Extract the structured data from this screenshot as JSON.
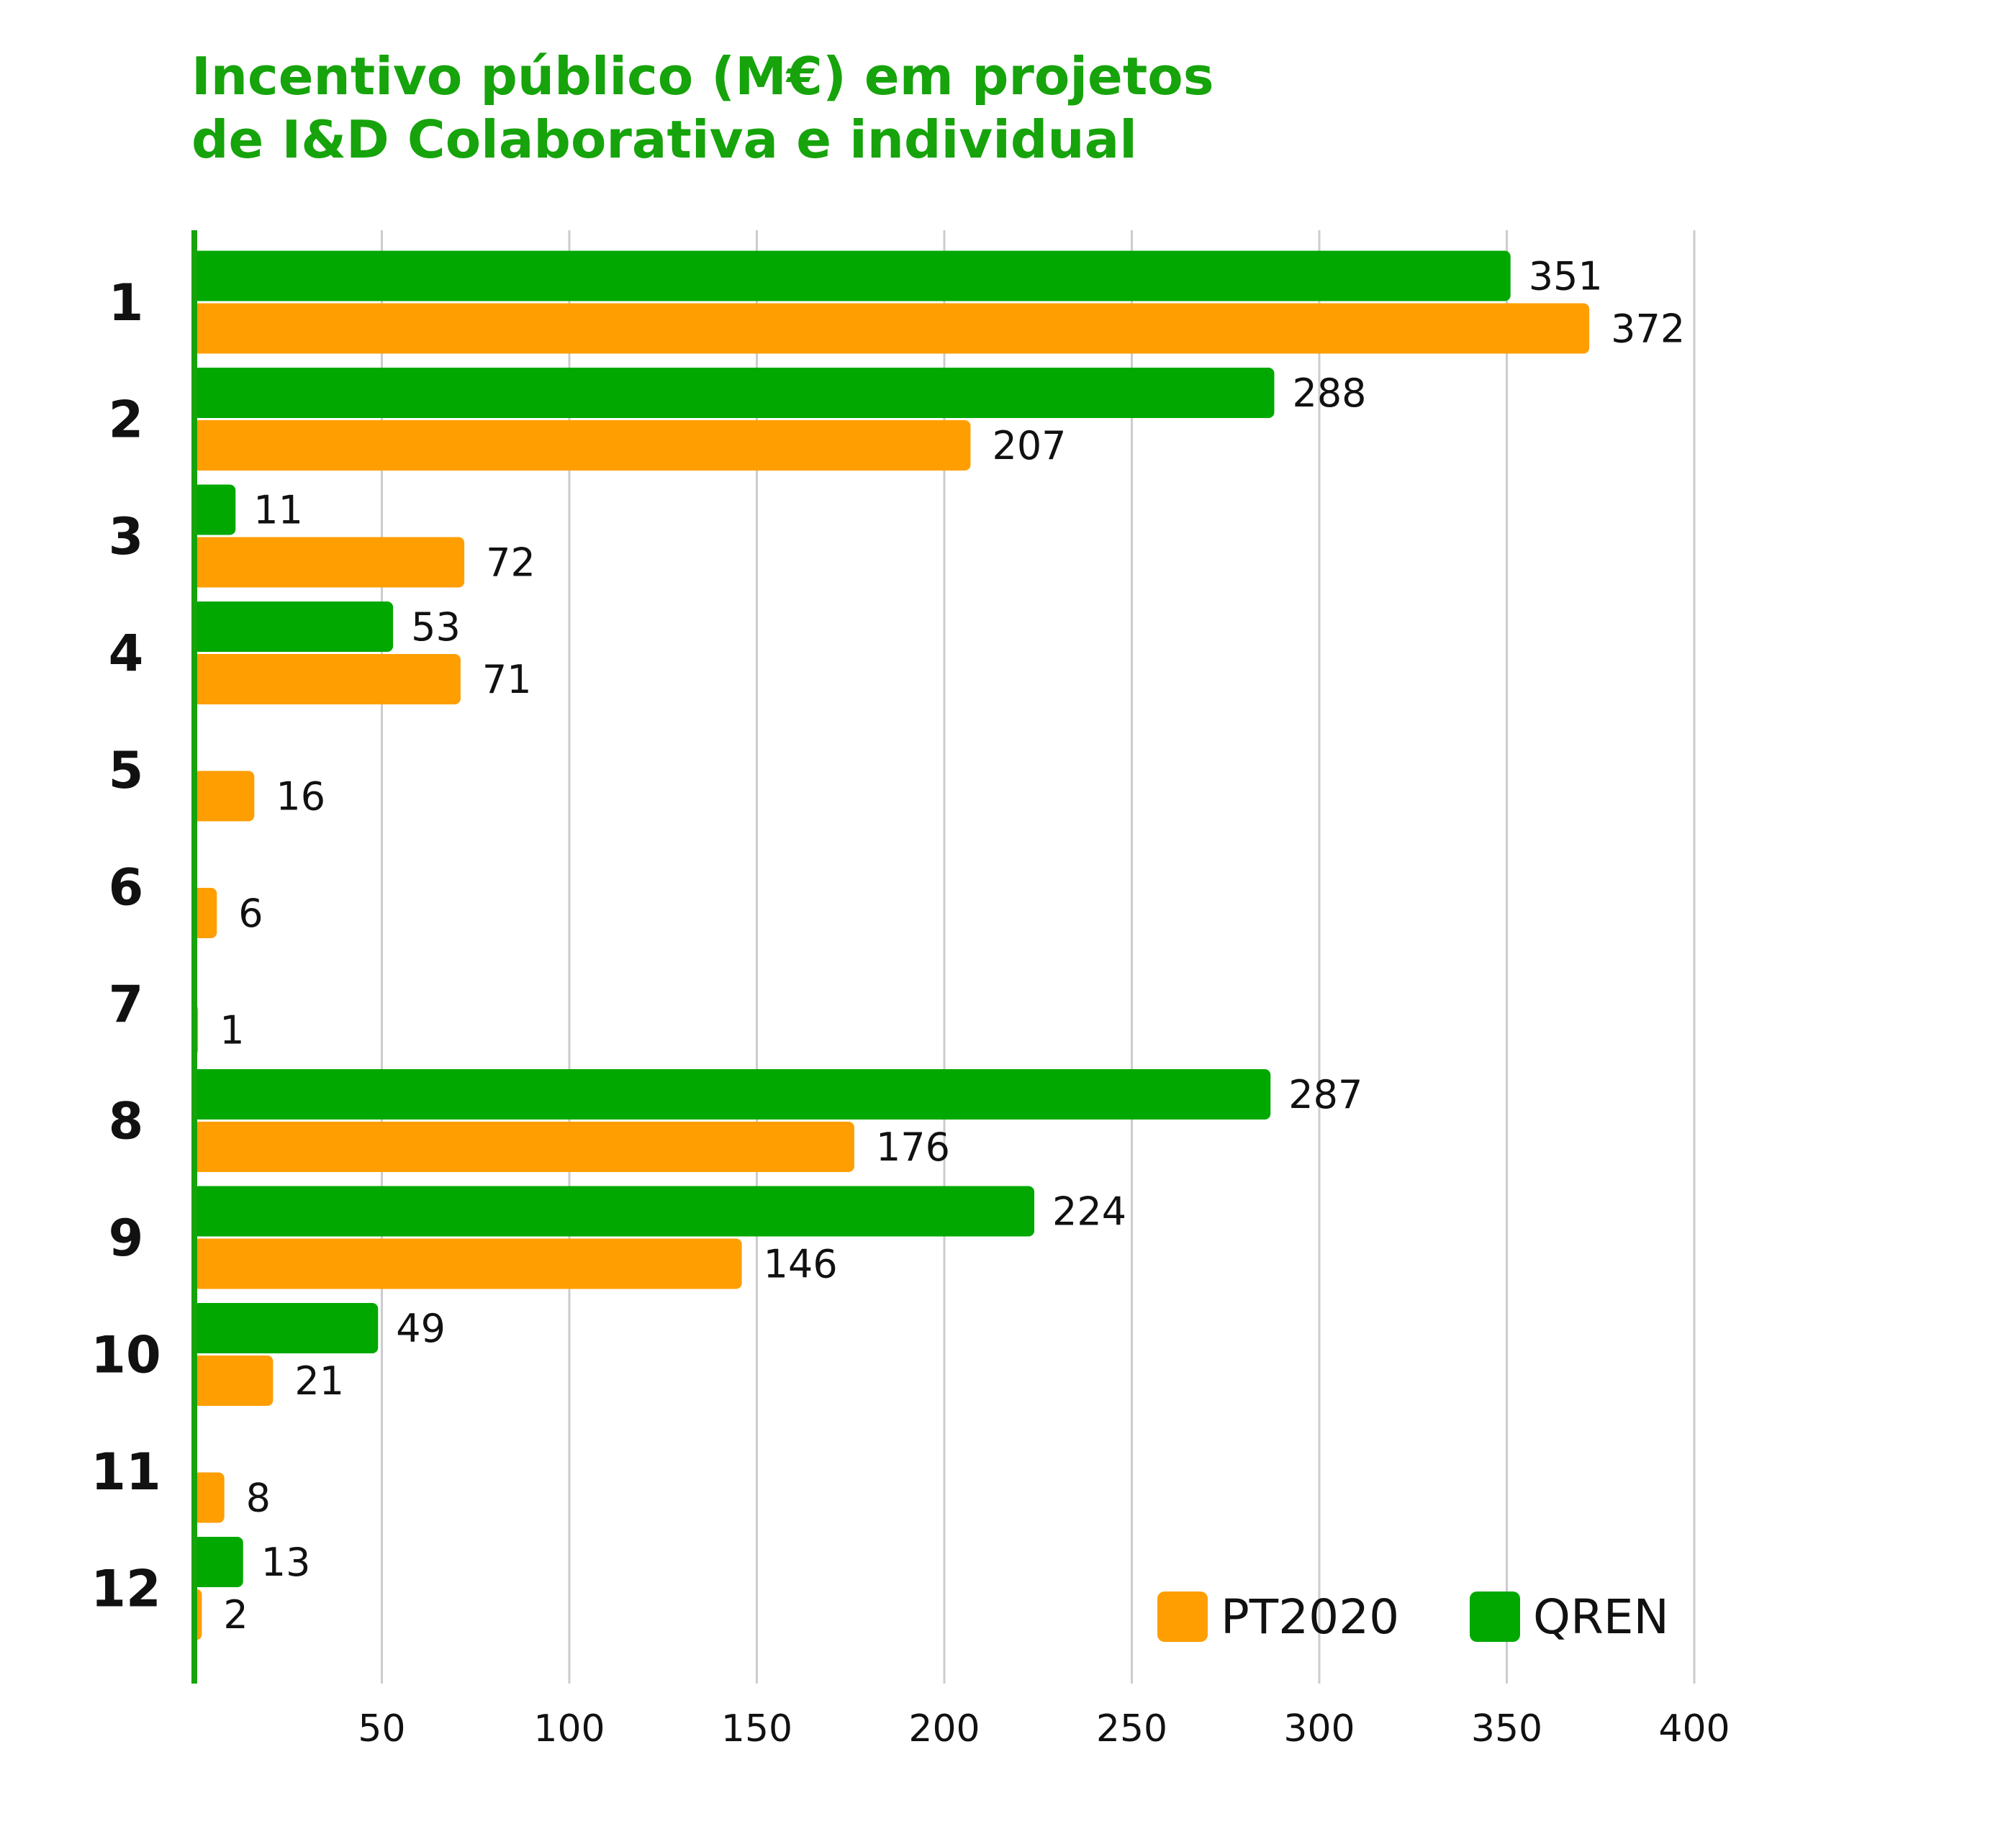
{
  "chart_data": {
    "type": "bar",
    "orientation": "horizontal",
    "title_lines": [
      "Incentivo público (M€) em projetos",
      "de I&D Colaborativa e individual"
    ],
    "categories": [
      "1",
      "2",
      "3",
      "4",
      "5",
      "6",
      "7",
      "8",
      "9",
      "10",
      "11",
      "12"
    ],
    "series": [
      {
        "name": "QREN",
        "color": "#00a800",
        "values": [
          351,
          288,
          11,
          53,
          null,
          null,
          null,
          287,
          224,
          49,
          null,
          13
        ],
        "labels": [
          "351",
          "288",
          "11",
          "53",
          null,
          null,
          null,
          "287",
          "224",
          "49",
          null,
          "13"
        ]
      },
      {
        "name": "PT2020",
        "color": "#ff9e00",
        "values": [
          372,
          207,
          72,
          71,
          16,
          6,
          1,
          176,
          146,
          21,
          8,
          2
        ],
        "labels": [
          "372",
          "207",
          "72",
          "71",
          "16",
          "6",
          "1",
          "176",
          "146",
          "21",
          "8",
          "2"
        ]
      }
    ],
    "x_ticks": [
      50,
      100,
      150,
      200,
      250,
      300,
      350,
      400
    ],
    "xlim": [
      0,
      400
    ],
    "grid": "vertical",
    "legend_position": "bottom-right",
    "legend": [
      {
        "name": "PT2020",
        "color": "#ff9e00"
      },
      {
        "name": "QREN",
        "color": "#00a800"
      }
    ],
    "axis_color": "#16a30b",
    "grid_color": "#cccccc"
  }
}
